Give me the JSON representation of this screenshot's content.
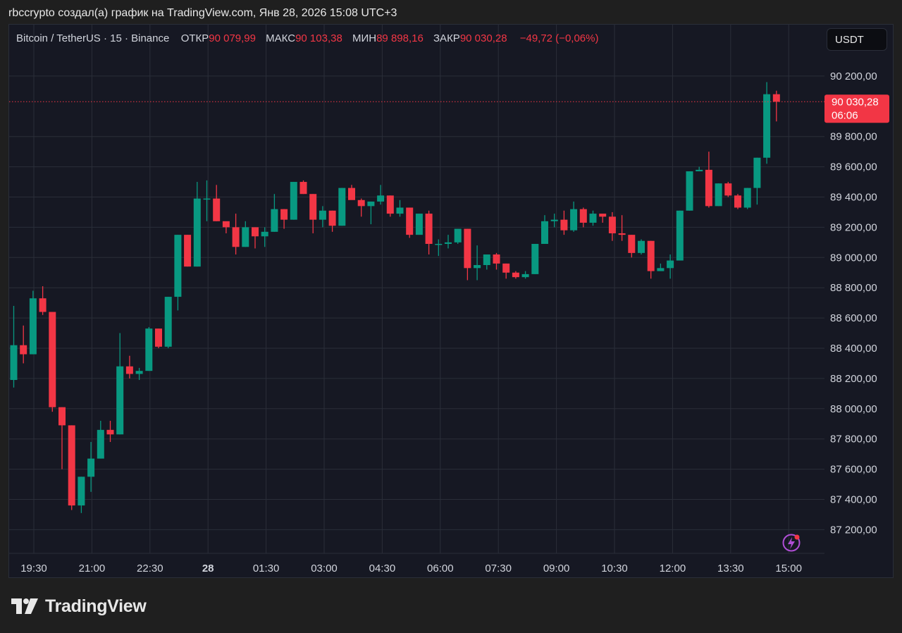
{
  "header": {
    "caption": "rbccrypto создал(а) график на TradingView.com, Янв 28, 2026 15:08 UTC+3"
  },
  "legend": {
    "symbol": "Bitcoin / TetherUS · 15 · Binance",
    "open_label": "ОТКР",
    "open_value": "90 079,99",
    "high_label": "МАКС",
    "high_value": "90 103,38",
    "low_label": "МИН",
    "low_value": "89 898,16",
    "close_label": "ЗАКР",
    "close_value": "90 030,28",
    "change": "−49,72 (−0,06%)"
  },
  "currency_button": "USDT",
  "price_badge": {
    "price": "90 030,28",
    "countdown": "06:06"
  },
  "brand": {
    "name": "TradingView"
  },
  "icons": {
    "alert": "lightning-icon",
    "logo": "tradingview-logo-icon"
  },
  "colors": {
    "up": "#089981",
    "down": "#f23645",
    "background": "#161823",
    "grid": "#2a2e39",
    "axis_text": "#d1d4dc"
  },
  "chart_data": {
    "type": "candlestick",
    "symbol": "BTCUSDT",
    "timeframe": "15",
    "y_axis": {
      "ticks": [
        87200,
        87400,
        87600,
        87800,
        88000,
        88200,
        88400,
        88600,
        88800,
        89000,
        89200,
        89400,
        89600,
        89800,
        90200
      ],
      "tick_labels": [
        "87 200,00",
        "87 400,00",
        "87 600,00",
        "87 800,00",
        "88 000,00",
        "88 200,00",
        "88 400,00",
        "88 600,00",
        "88 800,00",
        "89 000,00",
        "89 200,00",
        "89 400,00",
        "89 600,00",
        "89 800,00",
        "90 200,00"
      ],
      "range": [
        87020,
        90400
      ]
    },
    "x_axis": {
      "ticks": [
        "19:30",
        "21:00",
        "22:30",
        "28",
        "01:30",
        "03:00",
        "04:30",
        "06:00",
        "07:30",
        "09:00",
        "10:30",
        "12:00",
        "13:30",
        "15:00"
      ],
      "tick_bold": [
        false,
        false,
        false,
        true,
        false,
        false,
        false,
        false,
        false,
        false,
        false,
        false,
        false,
        false
      ]
    },
    "last_price": 90030.28,
    "candles": [
      [
        88190,
        88420,
        88140,
        88680
      ],
      [
        88420,
        88360,
        88300,
        88550
      ],
      [
        88360,
        88730,
        88360,
        88780
      ],
      [
        88730,
        88640,
        88620,
        88810
      ],
      [
        88640,
        88010,
        87980,
        88640
      ],
      [
        88010,
        87890,
        87600,
        88010
      ],
      [
        87890,
        87360,
        87330,
        87890
      ],
      [
        87360,
        87550,
        87310,
        87550
      ],
      [
        87550,
        87670,
        87450,
        87780
      ],
      [
        87670,
        87860,
        87670,
        87920
      ],
      [
        87860,
        87830,
        87780,
        87920
      ],
      [
        87830,
        88280,
        87830,
        88500
      ],
      [
        88280,
        88230,
        88200,
        88350
      ],
      [
        88230,
        88250,
        88190,
        88270
      ],
      [
        88250,
        88530,
        88250,
        88540
      ],
      [
        88530,
        88410,
        88400,
        88530
      ],
      [
        88410,
        88740,
        88400,
        88740
      ],
      [
        88740,
        89150,
        88650,
        89150
      ],
      [
        89150,
        88940,
        88940,
        89150
      ],
      [
        88940,
        89390,
        88940,
        89500
      ],
      [
        89390,
        89390,
        89240,
        89510
      ],
      [
        89390,
        89240,
        89240,
        89480
      ],
      [
        89240,
        89200,
        89160,
        89230
      ],
      [
        89200,
        89070,
        89020,
        89290
      ],
      [
        89070,
        89200,
        89070,
        89240
      ],
      [
        89200,
        89140,
        89060,
        89200
      ],
      [
        89140,
        89170,
        89070,
        89200
      ],
      [
        89170,
        89320,
        89170,
        89420
      ],
      [
        89320,
        89250,
        89190,
        89320
      ],
      [
        89250,
        89500,
        89250,
        89500
      ],
      [
        89500,
        89420,
        89420,
        89510
      ],
      [
        89420,
        89250,
        89160,
        89420
      ],
      [
        89250,
        89310,
        89200,
        89340
      ],
      [
        89310,
        89210,
        89170,
        89310
      ],
      [
        89210,
        89460,
        89210,
        89460
      ],
      [
        89460,
        89380,
        89390,
        89480
      ],
      [
        89380,
        89340,
        89270,
        89390
      ],
      [
        89340,
        89370,
        89220,
        89370
      ],
      [
        89370,
        89410,
        89350,
        89480
      ],
      [
        89410,
        89290,
        89270,
        89410
      ],
      [
        89290,
        89330,
        89270,
        89380
      ],
      [
        89330,
        89150,
        89130,
        89330
      ],
      [
        89150,
        89290,
        89150,
        89290
      ],
      [
        89290,
        89090,
        89020,
        89310
      ],
      [
        89090,
        89090,
        89010,
        89120
      ],
      [
        89090,
        89100,
        89060,
        89150
      ],
      [
        89100,
        89190,
        89090,
        89190
      ],
      [
        89190,
        88930,
        88850,
        89190
      ],
      [
        88930,
        88950,
        88850,
        89080
      ],
      [
        88950,
        89020,
        88920,
        89020
      ],
      [
        89020,
        88960,
        88920,
        89030
      ],
      [
        88960,
        88900,
        88860,
        88960
      ],
      [
        88900,
        88870,
        88860,
        88910
      ],
      [
        88870,
        88890,
        88860,
        88910
      ],
      [
        88890,
        89090,
        88890,
        89090
      ],
      [
        89090,
        89240,
        89090,
        89280
      ],
      [
        89240,
        89250,
        89200,
        89290
      ],
      [
        89250,
        89180,
        89150,
        89310
      ],
      [
        89180,
        89320,
        89170,
        89370
      ],
      [
        89320,
        89230,
        89200,
        89330
      ],
      [
        89230,
        89290,
        89210,
        89310
      ],
      [
        89290,
        89270,
        89230,
        89280
      ],
      [
        89270,
        89160,
        89110,
        89300
      ],
      [
        89160,
        89150,
        89110,
        89280
      ],
      [
        89150,
        89030,
        89000,
        89150
      ],
      [
        89030,
        89110,
        89020,
        89120
      ],
      [
        89110,
        88910,
        88860,
        89110
      ],
      [
        88910,
        88930,
        88920,
        88960
      ],
      [
        88930,
        88980,
        88860,
        89020
      ],
      [
        88980,
        89310,
        88990,
        89310
      ],
      [
        89310,
        89570,
        89310,
        89570
      ],
      [
        89570,
        89580,
        89570,
        89600
      ],
      [
        89580,
        89340,
        89330,
        89700
      ],
      [
        89340,
        89490,
        89340,
        89490
      ],
      [
        89490,
        89410,
        89400,
        89500
      ],
      [
        89410,
        89330,
        89320,
        89420
      ],
      [
        89330,
        89460,
        89320,
        89460
      ],
      [
        89460,
        89660,
        89350,
        89660
      ],
      [
        89660,
        90080,
        89620,
        90160
      ],
      [
        90080,
        90030,
        89900,
        90103
      ]
    ]
  }
}
